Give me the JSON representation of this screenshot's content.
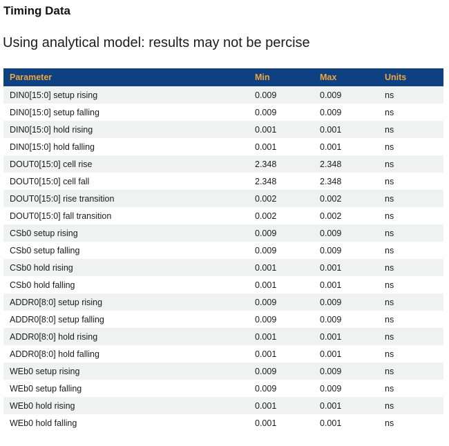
{
  "page": {
    "title": "Timing Data",
    "subtitle": "Using analytical model: results may not be percise"
  },
  "table": {
    "columns": [
      {
        "key": "parameter",
        "label": "Parameter"
      },
      {
        "key": "min",
        "label": "Min"
      },
      {
        "key": "max",
        "label": "Max"
      },
      {
        "key": "units",
        "label": "Units"
      }
    ],
    "rows": [
      {
        "parameter": "DIN0[15:0] setup rising",
        "min": "0.009",
        "max": "0.009",
        "units": "ns"
      },
      {
        "parameter": "DIN0[15:0] setup falling",
        "min": "0.009",
        "max": "0.009",
        "units": "ns"
      },
      {
        "parameter": "DIN0[15:0] hold rising",
        "min": "0.001",
        "max": "0.001",
        "units": "ns"
      },
      {
        "parameter": "DIN0[15:0] hold falling",
        "min": "0.001",
        "max": "0.001",
        "units": "ns"
      },
      {
        "parameter": "DOUT0[15:0] cell rise",
        "min": "2.348",
        "max": "2.348",
        "units": "ns"
      },
      {
        "parameter": "DOUT0[15:0] cell fall",
        "min": "2.348",
        "max": "2.348",
        "units": "ns"
      },
      {
        "parameter": "DOUT0[15:0] rise transition",
        "min": "0.002",
        "max": "0.002",
        "units": "ns"
      },
      {
        "parameter": "DOUT0[15:0] fall transition",
        "min": "0.002",
        "max": "0.002",
        "units": "ns"
      },
      {
        "parameter": "CSb0 setup rising",
        "min": "0.009",
        "max": "0.009",
        "units": "ns"
      },
      {
        "parameter": "CSb0 setup falling",
        "min": "0.009",
        "max": "0.009",
        "units": "ns"
      },
      {
        "parameter": "CSb0 hold rising",
        "min": "0.001",
        "max": "0.001",
        "units": "ns"
      },
      {
        "parameter": "CSb0 hold falling",
        "min": "0.001",
        "max": "0.001",
        "units": "ns"
      },
      {
        "parameter": "ADDR0[8:0] setup rising",
        "min": "0.009",
        "max": "0.009",
        "units": "ns"
      },
      {
        "parameter": "ADDR0[8:0] setup falling",
        "min": "0.009",
        "max": "0.009",
        "units": "ns"
      },
      {
        "parameter": "ADDR0[8:0] hold rising",
        "min": "0.001",
        "max": "0.001",
        "units": "ns"
      },
      {
        "parameter": "ADDR0[8:0] hold falling",
        "min": "0.001",
        "max": "0.001",
        "units": "ns"
      },
      {
        "parameter": "WEb0 setup rising",
        "min": "0.009",
        "max": "0.009",
        "units": "ns"
      },
      {
        "parameter": "WEb0 setup falling",
        "min": "0.009",
        "max": "0.009",
        "units": "ns"
      },
      {
        "parameter": "WEb0 hold rising",
        "min": "0.001",
        "max": "0.001",
        "units": "ns"
      },
      {
        "parameter": "WEb0 hold falling",
        "min": "0.001",
        "max": "0.001",
        "units": "ns"
      }
    ]
  },
  "colors": {
    "header_bg": "#0e4181",
    "header_text": "#f0a53c",
    "row_stripe_bg": "#f0f2f1",
    "body_text": "#1a1a1a"
  }
}
